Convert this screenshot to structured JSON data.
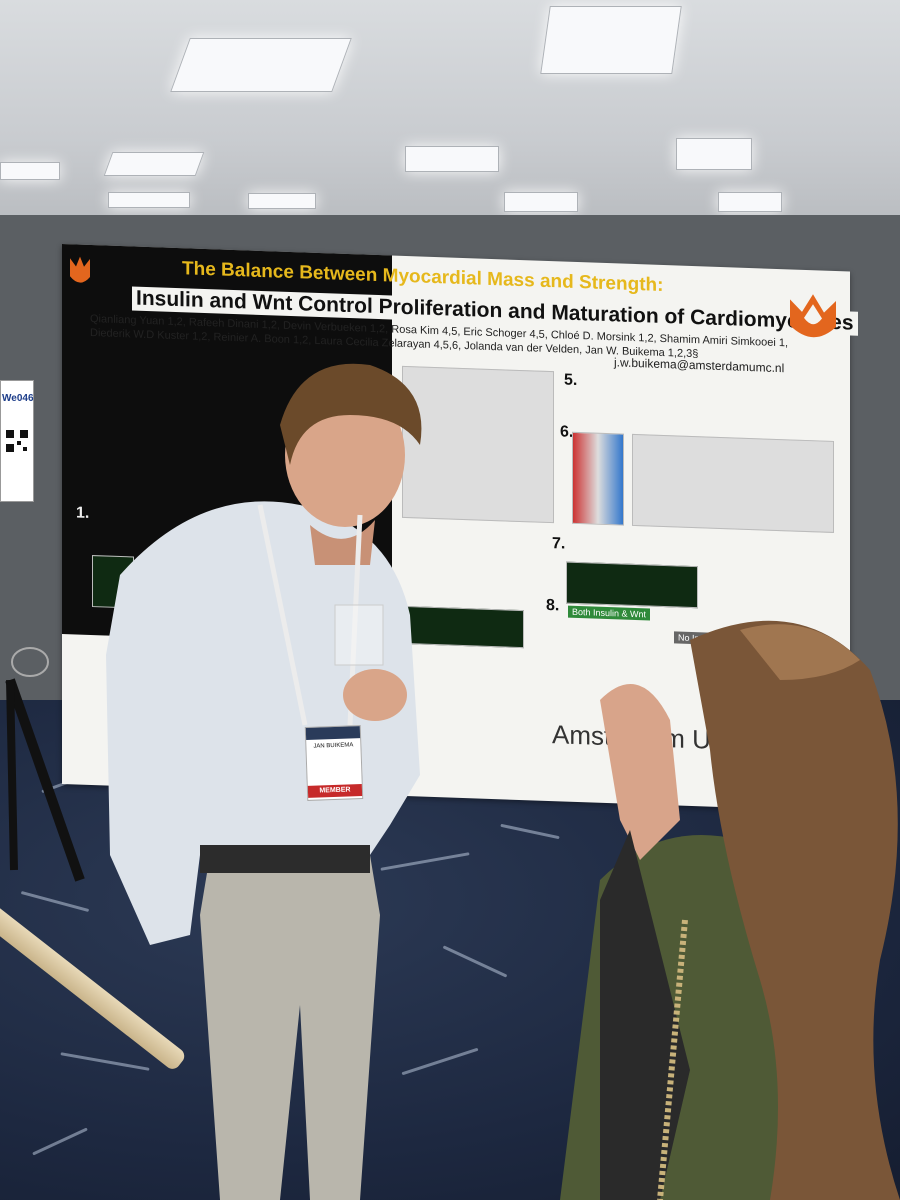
{
  "poster": {
    "title": "The Balance Between Myocardial Mass and Strength:",
    "subtitle": "Insulin and Wnt Control Proliferation and Maturation of Cardiomyocytes",
    "authors_line1": "Qianliang Yuan 1,2, Rafeeh Dinani 1,2, Devin Verbueken 1,2, Rosa Kim 4,5, Eric Schoger 4,5, Chloé D. Morsink 1,2, Shamim Amiri Simkooei 1,",
    "authors_line2": "Diederik W.D Kuster 1,2, Reinier A. Boon 1,2, Laura Cecilia Zelarayan 4,5,6, Jolanda van der Velden, Jan W. Buikema 1,2,3§",
    "email": "j.w.buikema@amsterdamumc.nl",
    "section_numbers": [
      "1.",
      "5.",
      "6.",
      "7.",
      "8."
    ],
    "pathway_labels": [
      "Both Insulin & Wnt",
      "No Insulin/Wnt"
    ],
    "footer_logo": "Amsterdam UMC"
  },
  "sign": {
    "code": "We046"
  },
  "badge": {
    "name": "JAN BUIKEMA",
    "ribbon": "MEMBER"
  },
  "colors": {
    "poster_title": "#e6b81c",
    "logo_orange": "#e3661e",
    "badge_ribbon": "#c62a2a",
    "floor": "#1d2840"
  }
}
